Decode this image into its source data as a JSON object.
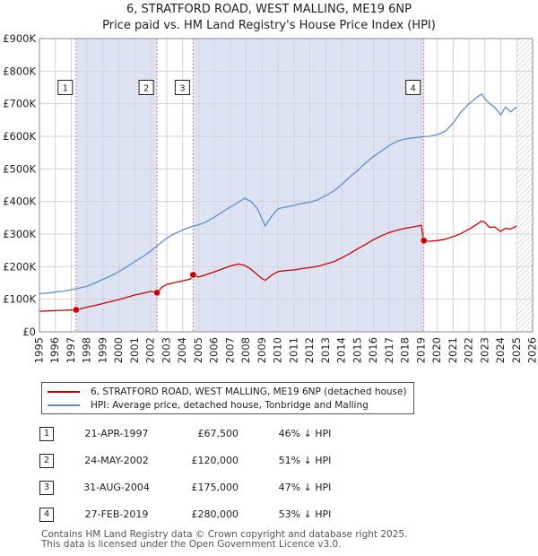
{
  "chart_data": {
    "type": "line",
    "title": "6, STRATFORD ROAD, WEST MALLING, ME19 6NP",
    "subtitle": "Price paid vs. HM Land Registry's House Price Index (HPI)",
    "xlim": [
      1995,
      2026
    ],
    "ylim": [
      0,
      900000
    ],
    "x_ticks": [
      1995,
      1996,
      1997,
      1998,
      1999,
      2000,
      2001,
      2002,
      2003,
      2004,
      2005,
      2006,
      2007,
      2008,
      2009,
      2010,
      2011,
      2012,
      2013,
      2014,
      2015,
      2016,
      2017,
      2018,
      2019,
      2020,
      2021,
      2022,
      2023,
      2024,
      2025,
      2026
    ],
    "y_ticks": [
      {
        "value": 0,
        "label": "£0"
      },
      {
        "value": 100000,
        "label": "£100K"
      },
      {
        "value": 200000,
        "label": "£200K"
      },
      {
        "value": 300000,
        "label": "£300K"
      },
      {
        "value": 400000,
        "label": "£400K"
      },
      {
        "value": 500000,
        "label": "£500K"
      },
      {
        "value": 600000,
        "label": "£600K"
      },
      {
        "value": 700000,
        "label": "£700K"
      },
      {
        "value": 800000,
        "label": "£800K"
      },
      {
        "value": 900000,
        "label": "£900K"
      }
    ],
    "shaded_periods": [
      [
        1997.3,
        2002.39
      ],
      [
        2004.66,
        2019.16
      ]
    ],
    "future_hatch_from": 2025.0,
    "series": [
      {
        "name": "6, STRATFORD ROAD, WEST MALLING, ME19 6NP (detached house)",
        "color": "#cc0000",
        "x": [
          1995.0,
          1995.5,
          1996.0,
          1996.5,
          1997.0,
          1997.3,
          1997.6,
          1998.0,
          1998.5,
          1999.0,
          1999.5,
          2000.0,
          2000.5,
          2001.0,
          2001.5,
          2002.0,
          2002.39,
          2002.7,
          2003.0,
          2003.5,
          2004.0,
          2004.5,
          2004.66,
          2005.0,
          2005.5,
          2006.0,
          2006.5,
          2007.0,
          2007.5,
          2007.9,
          2008.3,
          2008.7,
          2009.0,
          2009.2,
          2009.6,
          2010.0,
          2010.5,
          2011.0,
          2011.5,
          2012.0,
          2012.5,
          2013.0,
          2013.5,
          2014.0,
          2014.5,
          2015.0,
          2015.5,
          2016.0,
          2016.5,
          2017.0,
          2017.5,
          2018.0,
          2018.5,
          2019.0,
          2019.16,
          2019.5,
          2020.0,
          2020.5,
          2021.0,
          2021.5,
          2022.0,
          2022.5,
          2022.8,
          2023.0,
          2023.3,
          2023.6,
          2024.0,
          2024.3,
          2024.6,
          2025.0
        ],
        "y": [
          63000,
          64000,
          65000,
          66000,
          67000,
          67500,
          71000,
          76000,
          81000,
          87000,
          93000,
          99000,
          106000,
          113000,
          118000,
          124000,
          120000,
          137000,
          145000,
          151000,
          156000,
          162000,
          175000,
          168000,
          176000,
          184000,
          193000,
          202000,
          208000,
          204000,
          192000,
          175000,
          163000,
          158000,
          174000,
          185000,
          188000,
          190000,
          194000,
          197000,
          201000,
          208000,
          215000,
          227000,
          240000,
          255000,
          268000,
          283000,
          295000,
          305000,
          312000,
          318000,
          322000,
          327000,
          280000,
          278000,
          280000,
          284000,
          292000,
          302000,
          315000,
          330000,
          340000,
          336000,
          320000,
          322000,
          308000,
          318000,
          315000,
          325000
        ]
      },
      {
        "name": "HPI: Average price, detached house, Tonbridge and Malling",
        "color": "#5b8fd0",
        "x": [
          1995.0,
          1995.5,
          1996.0,
          1996.5,
          1997.0,
          1997.5,
          1998.0,
          1998.5,
          1999.0,
          1999.5,
          2000.0,
          2000.5,
          2001.0,
          2001.5,
          2002.0,
          2002.5,
          2003.0,
          2003.5,
          2004.0,
          2004.5,
          2005.0,
          2005.5,
          2006.0,
          2006.5,
          2007.0,
          2007.5,
          2007.9,
          2008.3,
          2008.7,
          2009.0,
          2009.2,
          2009.6,
          2010.0,
          2010.5,
          2011.0,
          2011.5,
          2012.0,
          2012.5,
          2013.0,
          2013.5,
          2014.0,
          2014.5,
          2015.0,
          2015.5,
          2016.0,
          2016.5,
          2017.0,
          2017.5,
          2018.0,
          2018.5,
          2019.0,
          2019.5,
          2020.0,
          2020.5,
          2021.0,
          2021.5,
          2022.0,
          2022.5,
          2022.8,
          2023.0,
          2023.3,
          2023.6,
          2024.0,
          2024.3,
          2024.6,
          2025.0
        ],
        "y": [
          117000,
          119000,
          122000,
          125000,
          129000,
          134000,
          140000,
          150000,
          161000,
          172000,
          185000,
          200000,
          216000,
          231000,
          248000,
          268000,
          287000,
          302000,
          312000,
          322000,
          328000,
          338000,
          352000,
          368000,
          383000,
          398000,
          410000,
          400000,
          378000,
          345000,
          325000,
          355000,
          378000,
          383000,
          388000,
          394000,
          398000,
          405000,
          418000,
          432000,
          452000,
          475000,
          495000,
          518000,
          538000,
          555000,
          572000,
          585000,
          592000,
          595000,
          598000,
          600000,
          605000,
          615000,
          640000,
          675000,
          700000,
          720000,
          730000,
          715000,
          700000,
          690000,
          665000,
          690000,
          675000,
          690000
        ]
      }
    ],
    "sales": [
      {
        "id": "1",
        "x": 1997.3,
        "y": 67500
      },
      {
        "id": "2",
        "x": 2002.39,
        "y": 120000
      },
      {
        "id": "3",
        "x": 2004.66,
        "y": 175000
      },
      {
        "id": "4",
        "x": 2019.16,
        "y": 280000
      }
    ],
    "marker_label_value": 750000
  },
  "legend": {
    "property": "6, STRATFORD ROAD, WEST MALLING, ME19 6NP (detached house)",
    "hpi": "HPI: Average price, detached house, Tonbridge and Malling"
  },
  "table": [
    {
      "num": "1",
      "date": "21-APR-1997",
      "price": "£67,500",
      "hpi": "46% ↓ HPI"
    },
    {
      "num": "2",
      "date": "24-MAY-2002",
      "price": "£120,000",
      "hpi": "51% ↓ HPI"
    },
    {
      "num": "3",
      "date": "31-AUG-2004",
      "price": "£175,000",
      "hpi": "47% ↓ HPI"
    },
    {
      "num": "4",
      "date": "27-FEB-2019",
      "price": "£280,000",
      "hpi": "53% ↓ HPI"
    }
  ],
  "footer": {
    "line1": "Contains HM Land Registry data © Crown copyright and database right 2025.",
    "line2": "This data is licensed under the Open Government Licence v3.0."
  }
}
